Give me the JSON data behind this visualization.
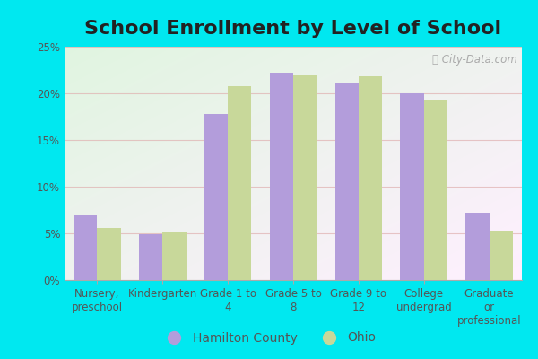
{
  "title": "School Enrollment by Level of School",
  "categories": [
    "Nursery,\npreschool",
    "Kindergarten",
    "Grade 1 to\n4",
    "Grade 5 to\n8",
    "Grade 9 to\n12",
    "College\nundergrad",
    "Graduate\nor\nprofessional"
  ],
  "hamilton_county": [
    6.9,
    4.9,
    17.8,
    22.2,
    21.1,
    20.0,
    7.2
  ],
  "ohio": [
    5.6,
    5.1,
    20.8,
    21.9,
    21.8,
    19.3,
    5.3
  ],
  "hamilton_color": "#b39ddb",
  "ohio_color": "#c8d89a",
  "background_outer": "#00e8f0",
  "ylim": [
    0,
    25
  ],
  "yticks": [
    0,
    5,
    10,
    15,
    20,
    25
  ],
  "ytick_labels": [
    "0%",
    "5%",
    "10%",
    "15%",
    "20%",
    "25%"
  ],
  "bar_width": 0.36,
  "legend_hamilton": "Hamilton County",
  "legend_ohio": "Ohio",
  "title_fontsize": 16,
  "tick_fontsize": 8.5,
  "legend_fontsize": 10,
  "watermark": "City-Data.com"
}
